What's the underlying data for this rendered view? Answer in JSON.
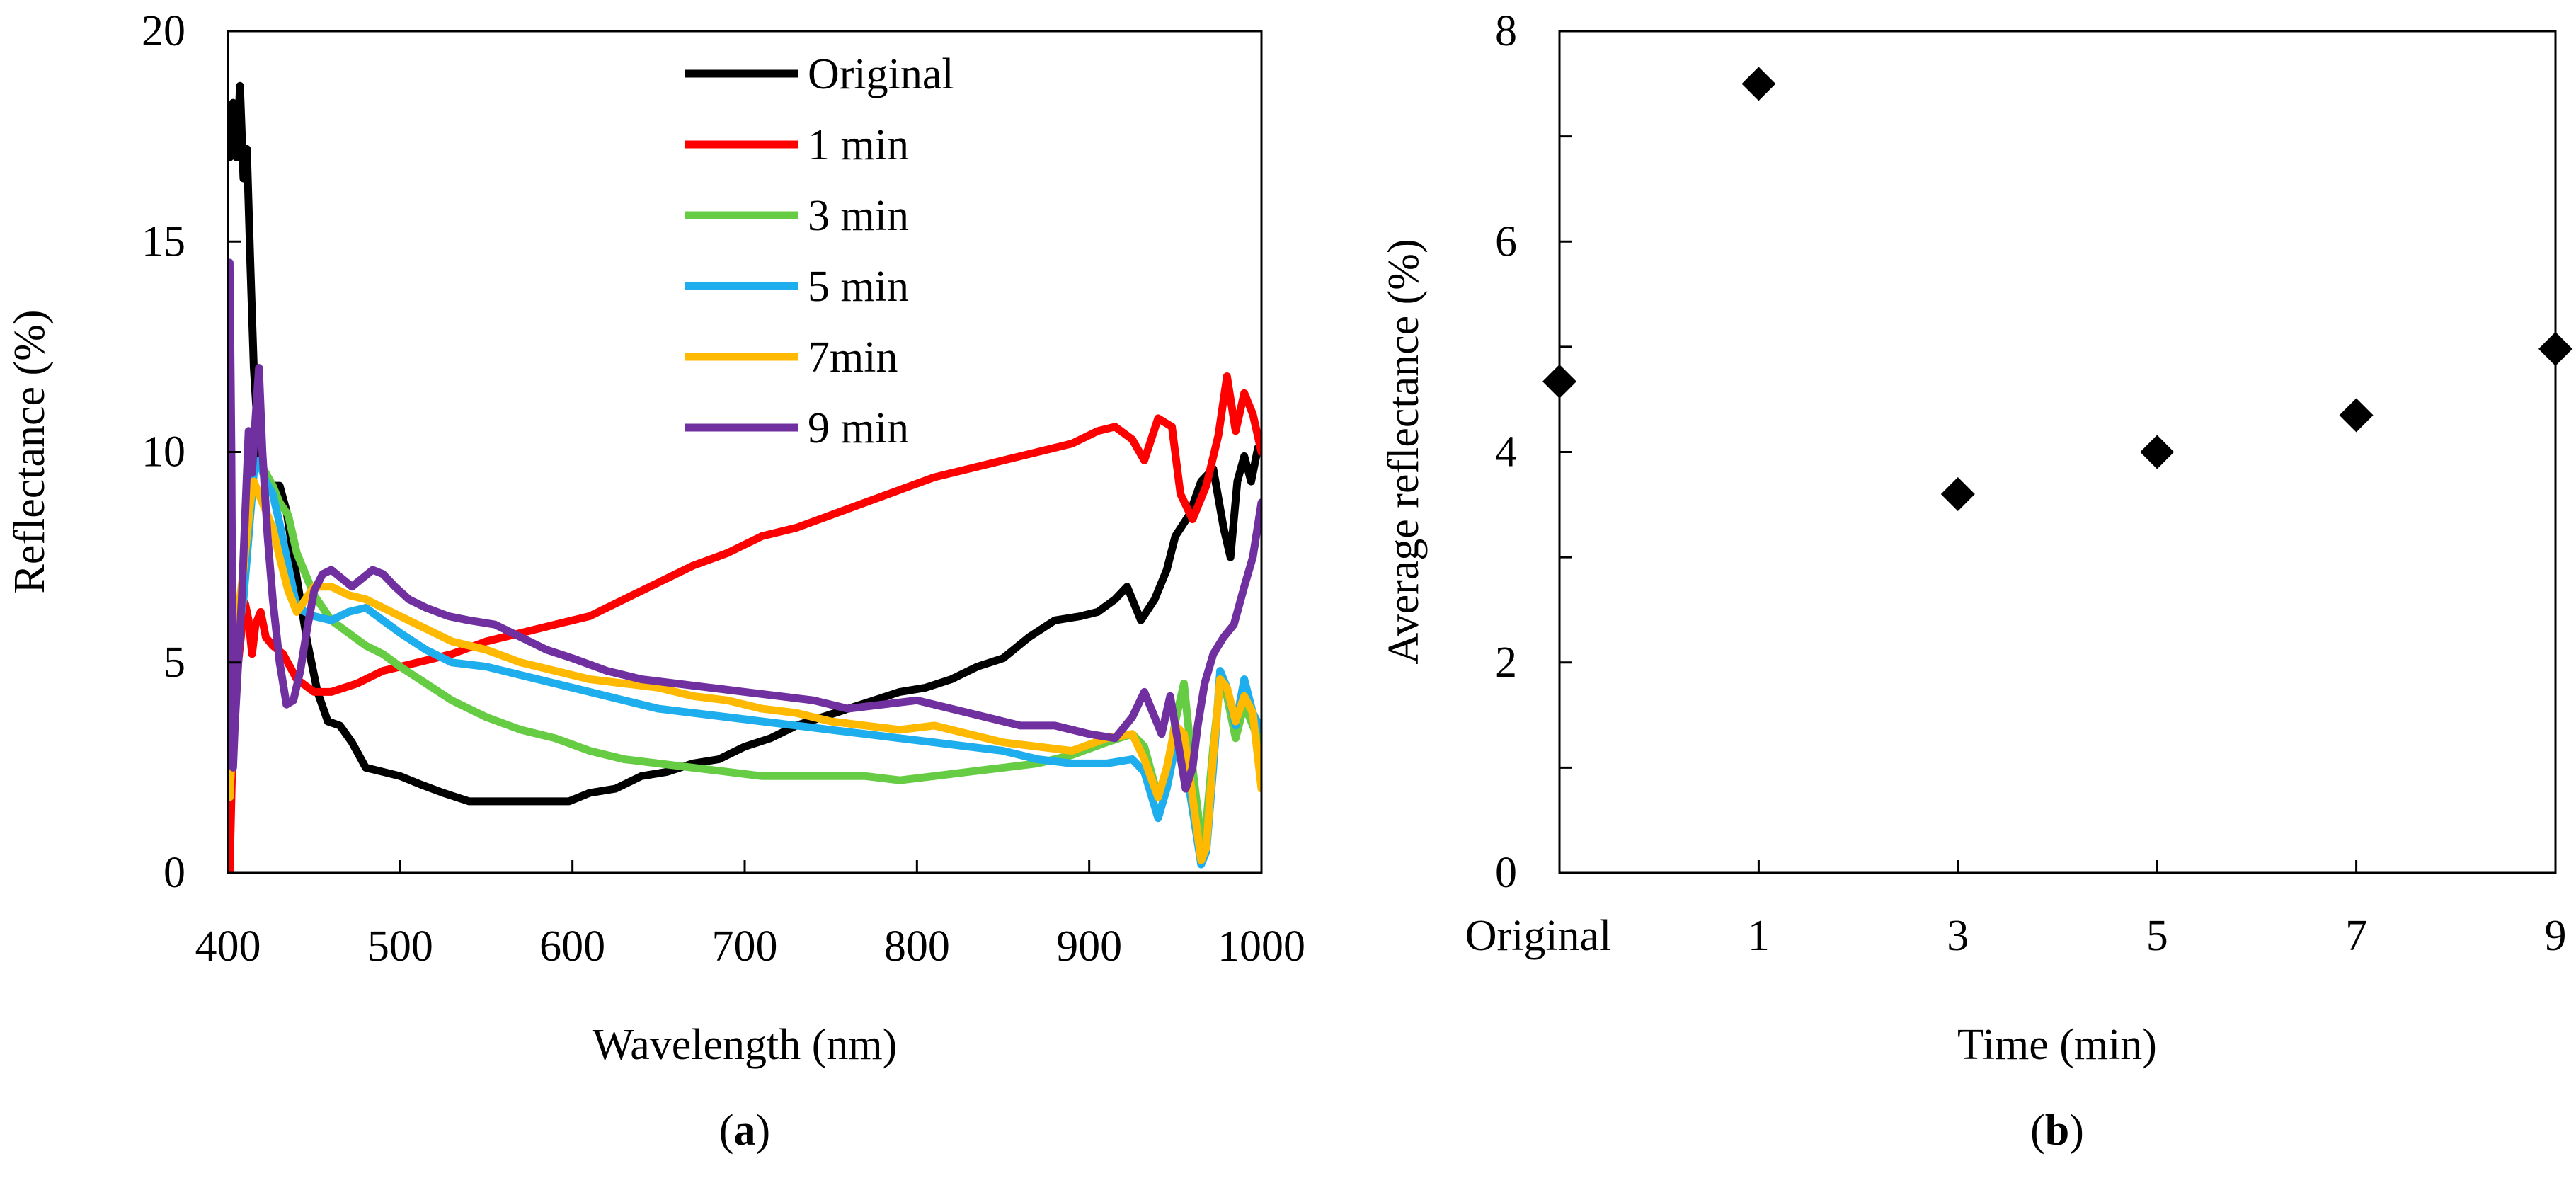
{
  "chart_data": [
    {
      "panel_label": "a",
      "type": "line",
      "xlabel": "Wavelength (nm)",
      "ylabel": "Reflectance (%)",
      "xlim": [
        400,
        1000
      ],
      "ylim": [
        0,
        20
      ],
      "xticks": [
        400,
        500,
        600,
        700,
        800,
        900,
        1000
      ],
      "yticks": [
        0,
        5,
        10,
        15,
        20
      ],
      "grid": false,
      "legend_position": "top-center",
      "series": [
        {
          "name": "Original",
          "color": "#000000",
          "x": [
            401,
            403,
            405,
            407,
            409,
            411,
            413,
            415,
            418,
            422,
            426,
            430,
            434,
            440,
            446,
            452,
            458,
            465,
            472,
            480,
            490,
            500,
            512,
            525,
            540,
            555,
            570,
            585,
            598,
            610,
            625,
            640,
            655,
            670,
            685,
            700,
            715,
            730,
            745,
            760,
            775,
            790,
            805,
            820,
            835,
            850,
            865,
            880,
            895,
            905,
            915,
            922,
            930,
            938,
            945,
            950,
            958,
            965,
            972,
            978,
            982,
            986,
            990,
            994,
            998,
            1000
          ],
          "y": [
            17.0,
            18.3,
            17.0,
            18.7,
            16.5,
            17.2,
            14.5,
            12.0,
            10.0,
            9.3,
            9.2,
            9.2,
            8.6,
            7.0,
            5.5,
            4.3,
            3.6,
            3.5,
            3.1,
            2.5,
            2.4,
            2.3,
            2.1,
            1.9,
            1.7,
            1.7,
            1.7,
            1.7,
            1.7,
            1.9,
            2.0,
            2.3,
            2.4,
            2.6,
            2.7,
            3.0,
            3.2,
            3.5,
            3.7,
            3.9,
            4.1,
            4.3,
            4.4,
            4.6,
            4.9,
            5.1,
            5.6,
            6.0,
            6.1,
            6.2,
            6.5,
            6.8,
            6.0,
            6.5,
            7.2,
            8.0,
            8.5,
            9.3,
            9.6,
            8.2,
            7.5,
            9.3,
            9.9,
            9.3,
            10.1,
            10.0
          ]
        },
        {
          "name": "1 min",
          "color": "#FF0000",
          "x": [
            401,
            403,
            406,
            408,
            410,
            412,
            414,
            416,
            419,
            422,
            426,
            432,
            440,
            450,
            460,
            475,
            490,
            510,
            530,
            550,
            570,
            590,
            610,
            630,
            650,
            670,
            690,
            710,
            730,
            750,
            770,
            790,
            810,
            830,
            850,
            870,
            890,
            905,
            915,
            925,
            932,
            940,
            948,
            953,
            960,
            968,
            975,
            980,
            985,
            990,
            995,
            1000
          ],
          "y": [
            0.0,
            3.5,
            5.0,
            5.8,
            6.4,
            6.0,
            5.2,
            5.9,
            6.2,
            5.6,
            5.4,
            5.2,
            4.6,
            4.3,
            4.3,
            4.5,
            4.8,
            5.0,
            5.2,
            5.5,
            5.7,
            5.9,
            6.1,
            6.5,
            6.9,
            7.3,
            7.6,
            8.0,
            8.2,
            8.5,
            8.8,
            9.1,
            9.4,
            9.6,
            9.8,
            10.0,
            10.2,
            10.5,
            10.6,
            10.3,
            9.8,
            10.8,
            10.6,
            9.0,
            8.4,
            9.2,
            10.4,
            11.8,
            10.5,
            11.4,
            10.9,
            10.0
          ]
        },
        {
          "name": "3 min",
          "color": "#66CC44",
          "x": [
            401,
            403,
            405,
            407,
            409,
            411,
            413,
            415,
            418,
            422,
            426,
            430,
            435,
            440,
            450,
            460,
            470,
            480,
            490,
            500,
            515,
            530,
            550,
            570,
            590,
            610,
            630,
            650,
            670,
            690,
            710,
            730,
            750,
            770,
            790,
            810,
            830,
            850,
            870,
            890,
            910,
            925,
            932,
            940,
            945,
            950,
            955,
            960,
            965,
            968,
            972,
            976,
            980,
            985,
            990,
            995,
            1000
          ],
          "y": [
            1.8,
            3.5,
            5.0,
            6.0,
            6.5,
            7.5,
            8.5,
            9.5,
            9.8,
            9.5,
            9.2,
            8.8,
            8.5,
            7.6,
            6.6,
            6.0,
            5.7,
            5.4,
            5.2,
            4.9,
            4.5,
            4.1,
            3.7,
            3.4,
            3.2,
            2.9,
            2.7,
            2.6,
            2.5,
            2.4,
            2.3,
            2.3,
            2.3,
            2.3,
            2.2,
            2.3,
            2.4,
            2.5,
            2.6,
            2.8,
            3.1,
            3.3,
            3.0,
            1.8,
            2.3,
            3.6,
            4.5,
            2.5,
            0.8,
            1.2,
            3.0,
            4.5,
            4.2,
            3.2,
            4.0,
            3.5,
            3.0
          ]
        },
        {
          "name": "5 min",
          "color": "#1EAEEE",
          "x": [
            401,
            403,
            405,
            407,
            409,
            411,
            413,
            415,
            418,
            422,
            426,
            430,
            435,
            440,
            450,
            460,
            470,
            480,
            490,
            500,
            515,
            530,
            550,
            570,
            590,
            610,
            630,
            650,
            670,
            690,
            710,
            730,
            750,
            770,
            790,
            810,
            830,
            850,
            870,
            890,
            910,
            925,
            932,
            940,
            945,
            950,
            955,
            960,
            965,
            968,
            972,
            976,
            980,
            985,
            990,
            995,
            1000
          ],
          "y": [
            1.8,
            3.5,
            5.0,
            6.0,
            6.5,
            7.5,
            8.5,
            9.5,
            9.8,
            9.3,
            9.0,
            8.3,
            7.3,
            6.3,
            6.1,
            6.0,
            6.2,
            6.3,
            6.0,
            5.7,
            5.3,
            5.0,
            4.9,
            4.7,
            4.5,
            4.3,
            4.1,
            3.9,
            3.8,
            3.7,
            3.6,
            3.5,
            3.4,
            3.3,
            3.2,
            3.1,
            3.0,
            2.9,
            2.7,
            2.6,
            2.6,
            2.7,
            2.4,
            1.3,
            2.0,
            3.0,
            2.8,
            1.5,
            0.2,
            0.5,
            2.5,
            4.8,
            4.4,
            3.5,
            4.6,
            3.8,
            3.4
          ]
        },
        {
          "name": "7min",
          "color": "#FFB900",
          "x": [
            401,
            403,
            405,
            407,
            409,
            411,
            413,
            415,
            418,
            422,
            426,
            430,
            435,
            440,
            445,
            450,
            460,
            470,
            480,
            490,
            500,
            515,
            530,
            550,
            570,
            590,
            610,
            630,
            650,
            670,
            690,
            710,
            730,
            750,
            770,
            790,
            810,
            830,
            850,
            870,
            890,
            910,
            925,
            932,
            940,
            945,
            950,
            955,
            960,
            965,
            968,
            972,
            976,
            980,
            985,
            990,
            995,
            1000
          ],
          "y": [
            1.8,
            3.5,
            5.5,
            6.5,
            7.2,
            8.0,
            8.8,
            9.3,
            9.0,
            8.6,
            8.2,
            7.5,
            6.7,
            6.2,
            6.5,
            6.8,
            6.8,
            6.6,
            6.5,
            6.3,
            6.1,
            5.8,
            5.5,
            5.3,
            5.0,
            4.8,
            4.6,
            4.5,
            4.4,
            4.2,
            4.1,
            3.9,
            3.8,
            3.6,
            3.5,
            3.4,
            3.5,
            3.3,
            3.1,
            3.0,
            2.9,
            3.2,
            3.3,
            2.7,
            1.8,
            2.5,
            3.5,
            3.3,
            1.8,
            0.3,
            0.6,
            2.8,
            4.6,
            4.4,
            3.6,
            4.2,
            3.8,
            2.0
          ]
        },
        {
          "name": "9 min",
          "color": "#7030A0",
          "x": [
            401,
            402,
            403,
            404,
            406,
            408,
            410,
            412,
            414,
            416,
            418,
            420,
            423,
            426,
            430,
            434,
            438,
            442,
            446,
            450,
            455,
            460,
            466,
            472,
            478,
            484,
            490,
            497,
            505,
            515,
            528,
            540,
            555,
            570,
            585,
            600,
            620,
            640,
            660,
            680,
            700,
            720,
            740,
            760,
            780,
            800,
            820,
            840,
            860,
            880,
            900,
            915,
            925,
            932,
            937,
            942,
            947,
            952,
            956,
            960,
            963,
            967,
            972,
            978,
            984,
            990,
            995,
            1000
          ],
          "y": [
            14.5,
            10.0,
            2.5,
            3.5,
            5.0,
            6.5,
            8.5,
            10.5,
            9.5,
            10.8,
            12.0,
            10.0,
            8.0,
            6.5,
            5.0,
            4.0,
            4.1,
            4.8,
            5.8,
            6.7,
            7.1,
            7.2,
            7.0,
            6.8,
            7.0,
            7.2,
            7.1,
            6.8,
            6.5,
            6.3,
            6.1,
            6.0,
            5.9,
            5.6,
            5.3,
            5.1,
            4.8,
            4.6,
            4.5,
            4.4,
            4.3,
            4.2,
            4.1,
            3.9,
            4.0,
            4.1,
            3.9,
            3.7,
            3.5,
            3.5,
            3.3,
            3.2,
            3.7,
            4.3,
            3.8,
            3.3,
            4.2,
            3.0,
            2.0,
            2.5,
            3.5,
            4.5,
            5.2,
            5.6,
            5.9,
            6.8,
            7.5,
            8.8
          ]
        }
      ]
    },
    {
      "panel_label": "b",
      "type": "scatter",
      "xlabel": "Time (min)",
      "ylabel": "Average reflectance (%)",
      "ylim": [
        0,
        8
      ],
      "yticks": [
        0,
        2,
        4,
        6,
        8
      ],
      "categories": [
        "Original",
        "1",
        "3",
        "5",
        "7",
        "9"
      ],
      "values": [
        4.67,
        7.5,
        3.6,
        4.0,
        4.35,
        4.98
      ],
      "marker": "diamond",
      "color": "#000000",
      "grid": false
    }
  ]
}
